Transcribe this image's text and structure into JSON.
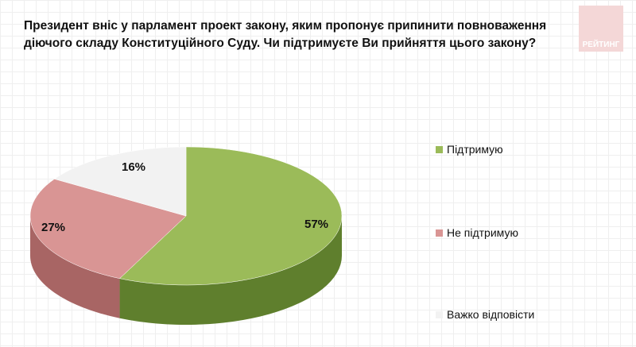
{
  "title": "Президент вніс у парламент проект закону, яким пропонує припинити повноваження діючого складу Конституційного Суду. Чи підтримуєте Ви прийняття цього закону?",
  "logo_text": "РЕЙТИНГ",
  "chart_data": {
    "type": "pie",
    "title": "Президент вніс у парламент проект закону, яким пропонує припинити повноваження діючого складу Конституційного Суду. Чи підтримуєте Ви прийняття цього закону?",
    "categories": [
      "Підтримую",
      "Не підтримую",
      "Важко відповісти"
    ],
    "values": [
      57,
      27,
      16
    ],
    "labels": [
      "57%",
      "27%",
      "16%"
    ],
    "colors": [
      "#9bbb59",
      "#d99594",
      "#f2f2f2"
    ],
    "side_colors": [
      "#5f7f2d",
      "#a86564",
      "#c8c8c8"
    ],
    "legend_position": "right"
  }
}
